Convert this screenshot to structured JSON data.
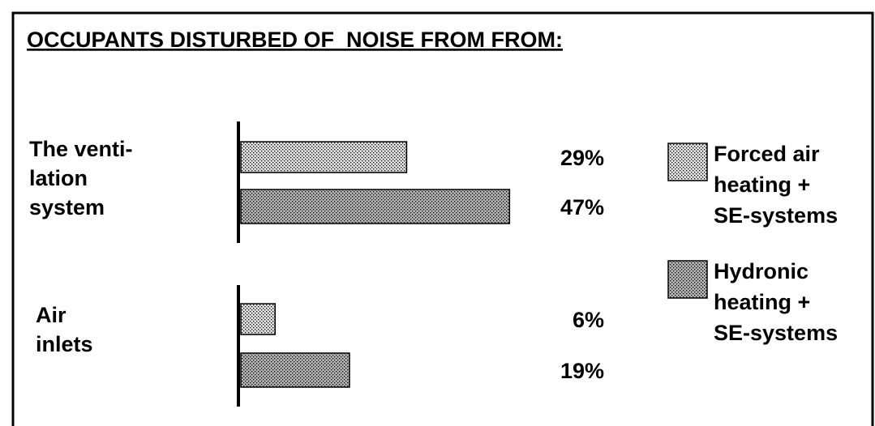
{
  "chart_data": {
    "type": "bar",
    "orientation": "horizontal",
    "title": "OCCUPANTS DISTURBED OF  NOISE FROM FROM:",
    "categories": [
      "The venti-\nlation\nsystem",
      "Air\ninlets"
    ],
    "series": [
      {
        "name": "Forced air\nheating +\nSE-systems",
        "color": "#e2e2e2",
        "values": [
          29,
          6
        ],
        "value_labels": [
          "29%",
          "6%"
        ]
      },
      {
        "name": "Hydronic\nheating +\nSE-systems",
        "color": "#b4b4b4",
        "values": [
          47,
          19
        ],
        "value_labels": [
          "47%",
          "19%"
        ]
      }
    ]
  }
}
